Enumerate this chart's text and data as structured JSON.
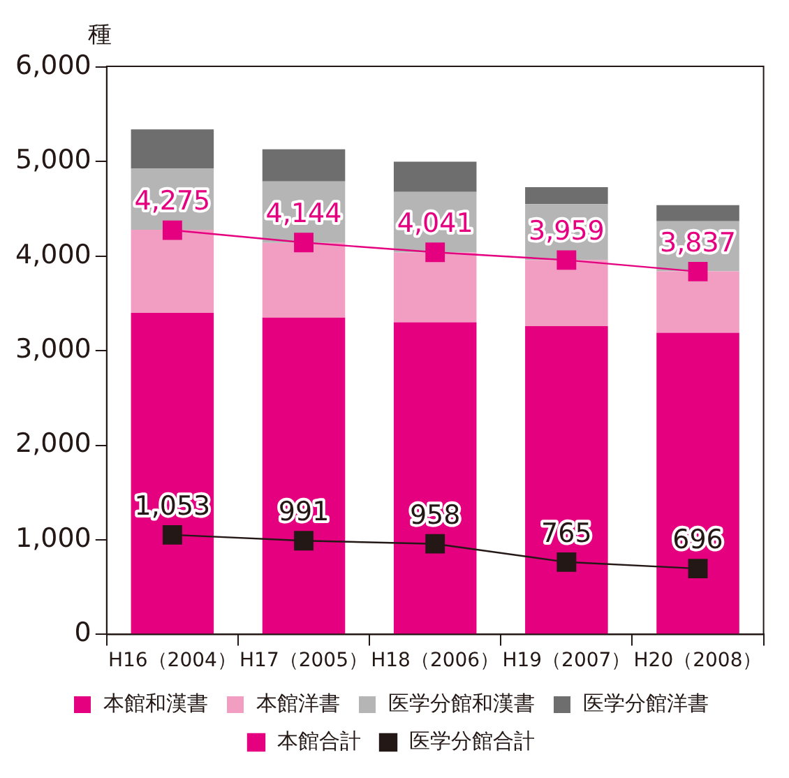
{
  "chart_data": {
    "type": "bar",
    "ylabel": "種",
    "stacked": true,
    "grid": false,
    "legend": "bottom",
    "marker": "square",
    "categories": [
      "H16（2004）",
      "H17（2005）",
      "H18（2006）",
      "H19（2007）",
      "H20（2008）"
    ],
    "ylim": [
      0,
      6000
    ],
    "yticks": [
      {
        "value": 0,
        "label": "0"
      },
      {
        "value": 1000,
        "label": "1,000"
      },
      {
        "value": 2000,
        "label": "2,000"
      },
      {
        "value": 3000,
        "label": "3,000"
      },
      {
        "value": 4000,
        "label": "4,000"
      },
      {
        "value": 5000,
        "label": "5,000"
      },
      {
        "value": 6000,
        "label": "6,000"
      }
    ],
    "series": [
      {
        "name": "本館和漢書",
        "color": "#e4007f",
        "values": [
          3400,
          3350,
          3300,
          3260,
          3190
        ]
      },
      {
        "name": "本館洋書",
        "color": "#f19ec2",
        "values": [
          880,
          790,
          740,
          700,
          650
        ]
      },
      {
        "name": "医学分館和漢書",
        "color": "#b5b5b5",
        "values": [
          650,
          650,
          640,
          590,
          530
        ]
      },
      {
        "name": "医学分館洋書",
        "color": "#6e6e6e",
        "values": [
          410,
          340,
          320,
          180,
          170
        ]
      },
      {
        "name": "本館合計",
        "type": "line",
        "color": "#e4007f",
        "values": [
          4275,
          4144,
          4041,
          3959,
          3837
        ],
        "value_labels": [
          "4,275",
          "4,144",
          "4,041",
          "3,959",
          "3,837"
        ]
      },
      {
        "name": "医学分館合計",
        "type": "line",
        "color": "#231815",
        "values": [
          1053,
          991,
          958,
          765,
          696
        ],
        "value_labels": [
          "1,053",
          "991",
          "958",
          "765",
          "696"
        ]
      }
    ]
  }
}
